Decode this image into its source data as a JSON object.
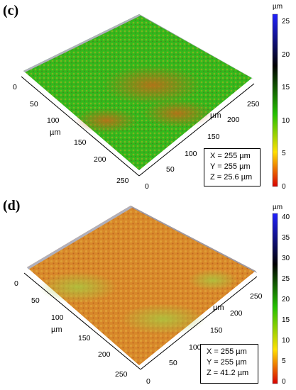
{
  "panels": [
    {
      "label": "(c)",
      "colorbar": {
        "unit": "µm",
        "ticks": [
          "25",
          "20",
          "15",
          "10",
          "5",
          "0"
        ],
        "colors": [
          "#2020ff",
          "#000000",
          "#22c000",
          "#ffe000",
          "#d80000"
        ]
      },
      "axis_ticks_left": [
        "0",
        "50",
        "100",
        "150",
        "200",
        "250"
      ],
      "axis_ticks_right": [
        "0",
        "50",
        "100",
        "150",
        "200",
        "250"
      ],
      "axis_unit": "µm",
      "info": {
        "x": "X = 255 µm",
        "y": "Y = 255 µm",
        "z": "Z = 25.6 µm"
      },
      "surface_colors": {
        "primary": "#2fbf1a",
        "secondary": "#d9a020",
        "dark": "#7a3a10"
      }
    },
    {
      "label": "(d)",
      "colorbar": {
        "unit": "µm",
        "ticks": [
          "40",
          "35",
          "30",
          "25",
          "20",
          "15",
          "10",
          "5",
          "0"
        ],
        "colors": [
          "#2020ff",
          "#000000",
          "#22c000",
          "#ffe000",
          "#d80000"
        ]
      },
      "axis_ticks_left": [
        "0",
        "50",
        "100",
        "150",
        "200",
        "250"
      ],
      "axis_ticks_right": [
        "0",
        "50",
        "100",
        "150",
        "200",
        "250"
      ],
      "axis_unit": "µm",
      "info": {
        "x": "X = 255 µm",
        "y": "Y = 255 µm",
        "z": "Z = 41.2 µm"
      },
      "surface_colors": {
        "primary": "#d98a2a",
        "secondary": "#b9c24a",
        "dark": "#9a3a14"
      }
    }
  ]
}
